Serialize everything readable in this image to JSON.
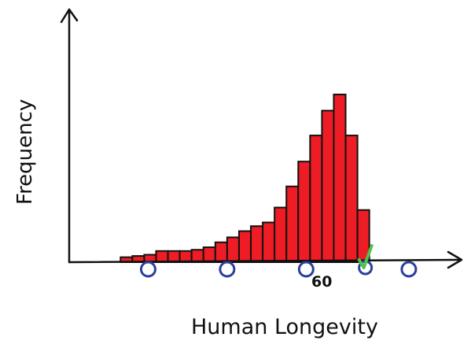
{
  "chart_data": {
    "type": "bar",
    "title": "",
    "xlabel": "Human Longevity",
    "ylabel": "Frequency",
    "tick_labels": [
      {
        "label": "60",
        "x": 60
      }
    ],
    "x_marks": [
      20,
      40,
      60,
      75,
      86
    ],
    "checked_x": 75,
    "bars": [
      {
        "x0": 13,
        "x1": 16,
        "value": 4
      },
      {
        "x0": 16,
        "x1": 19,
        "value": 5
      },
      {
        "x0": 19,
        "x1": 22,
        "value": 6
      },
      {
        "x0": 22,
        "x1": 25,
        "value": 9
      },
      {
        "x0": 25,
        "x1": 28,
        "value": 9
      },
      {
        "x0": 28,
        "x1": 31,
        "value": 9
      },
      {
        "x0": 31,
        "x1": 34,
        "value": 10
      },
      {
        "x0": 34,
        "x1": 37,
        "value": 12
      },
      {
        "x0": 37,
        "x1": 40,
        "value": 16
      },
      {
        "x0": 40,
        "x1": 43,
        "value": 20
      },
      {
        "x0": 43,
        "x1": 46,
        "value": 25
      },
      {
        "x0": 46,
        "x1": 49,
        "value": 29
      },
      {
        "x0": 49,
        "x1": 52,
        "value": 32
      },
      {
        "x0": 52,
        "x1": 55,
        "value": 44
      },
      {
        "x0": 55,
        "x1": 58,
        "value": 61
      },
      {
        "x0": 58,
        "x1": 61,
        "value": 81
      },
      {
        "x0": 61,
        "x1": 64,
        "value": 102
      },
      {
        "x0": 64,
        "x1": 67,
        "value": 122
      },
      {
        "x0": 67,
        "x1": 70,
        "value": 135
      },
      {
        "x0": 70,
        "x1": 73,
        "value": 102
      },
      {
        "x0": 73,
        "x1": 76,
        "value": 42
      }
    ],
    "xlim": [
      0,
      90
    ],
    "ylim": [
      0,
      160
    ],
    "grid": false,
    "legend": "none"
  },
  "colors": {
    "bar_fill": "#ee1c24",
    "bar_stroke": "#111111",
    "axis": "#111111",
    "circle_marker": "#2a3f9d",
    "check_mark": "#4cc34c"
  }
}
